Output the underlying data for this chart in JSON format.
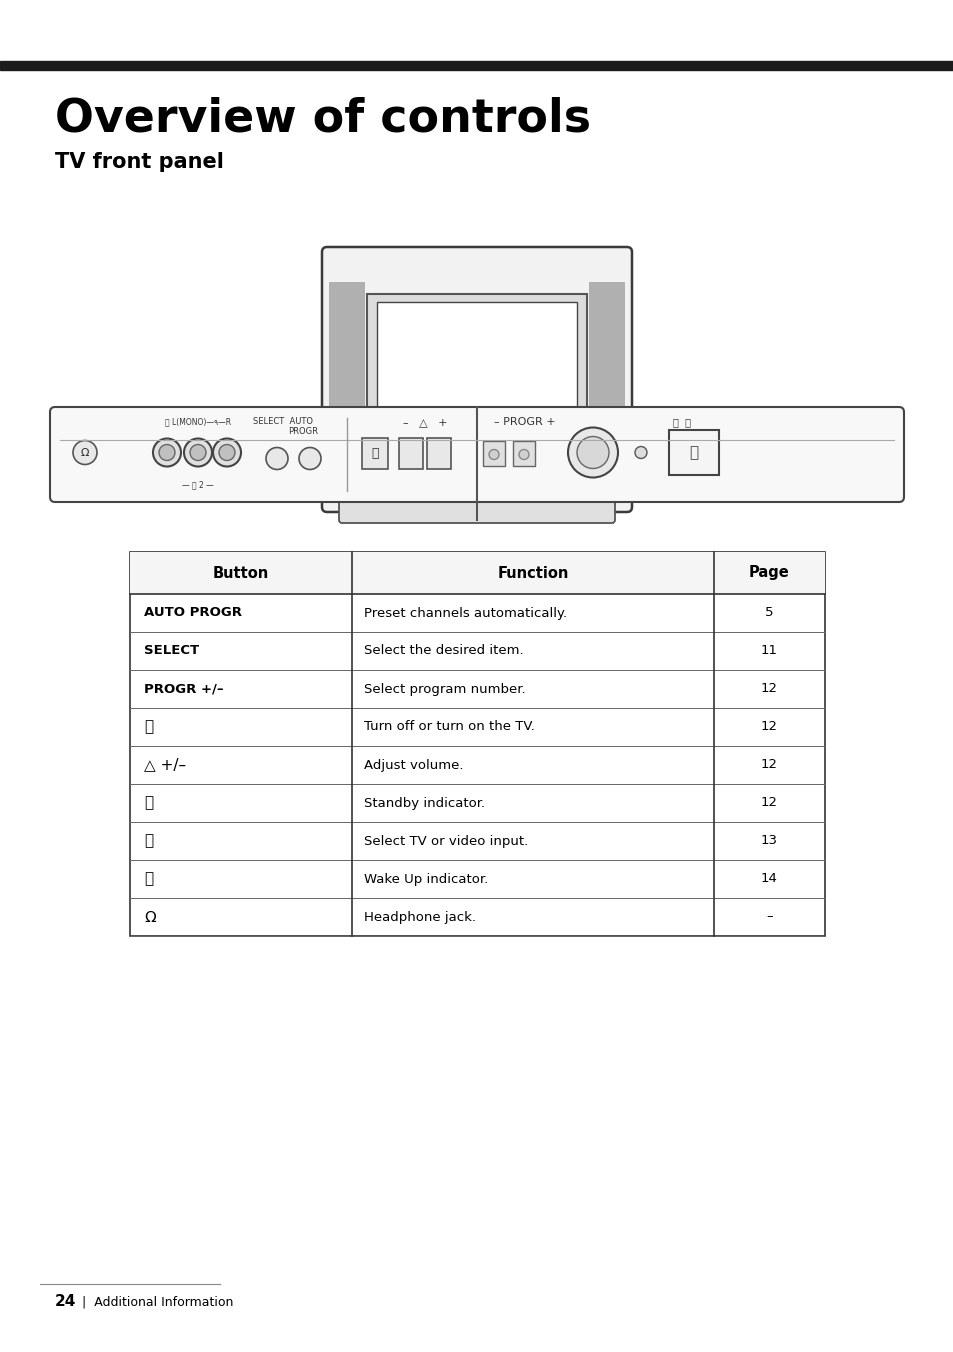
{
  "title": "Overview of controls",
  "subtitle": "TV front panel",
  "page_num": "24",
  "page_label": "Additional Information",
  "table_headers": [
    "Button",
    "Function",
    "Page"
  ],
  "table_rows": [
    [
      "AUTO PROGR",
      "Preset channels automatically.",
      "5"
    ],
    [
      "SELECT",
      "Select the desired item.",
      "11"
    ],
    [
      "PROGR +/–",
      "Select program number.",
      "12"
    ],
    [
      "Ⓤ",
      "Turn off or turn on the TV.",
      "12"
    ],
    [
      "△ +/–",
      "Adjust volume.",
      "12"
    ],
    [
      "⏻",
      "Standby indicator.",
      "12"
    ],
    [
      "⎆",
      "Select TV or video input.",
      "13"
    ],
    [
      "⌛",
      "Wake Up indicator.",
      "14"
    ],
    [
      "Ω",
      "Headphone jack.",
      "–"
    ]
  ],
  "bg_color": "#ffffff",
  "text_color": "#000000",
  "line_color": "#333333",
  "gray_color": "#b0b0b0",
  "light_gray": "#e8e8e8",
  "top_bar_color": "#1c1c1c"
}
